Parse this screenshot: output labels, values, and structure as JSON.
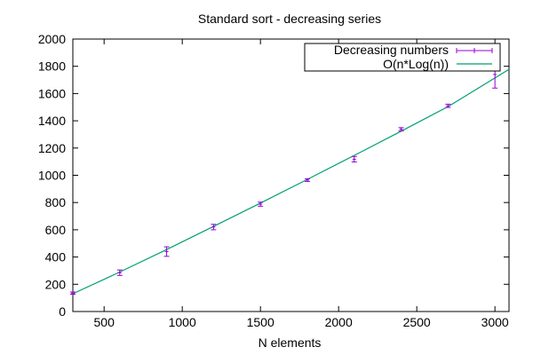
{
  "chart_data": {
    "type": "line",
    "title": "Standard sort - decreasing series",
    "xlabel": "N elements",
    "ylabel": "",
    "xlim": [
      300,
      3090
    ],
    "ylim": [
      0,
      2000
    ],
    "xticks": [
      "500",
      "1000",
      "1500",
      "2000",
      "2500",
      "3000"
    ],
    "yticks": [
      "0",
      "200",
      "400",
      "600",
      "800",
      "1000",
      "1200",
      "1400",
      "1600",
      "1800",
      "2000"
    ],
    "grid": false,
    "legend_position": "top-right",
    "series": [
      {
        "name": "Decreasing numbers",
        "style": "points-with-errorbars",
        "color": "#9400d3",
        "points": [
          {
            "x": 300,
            "y": 135,
            "err": 8
          },
          {
            "x": 600,
            "y": 285,
            "err": 20
          },
          {
            "x": 900,
            "y": 440,
            "err": 35
          },
          {
            "x": 1200,
            "y": 620,
            "err": 20
          },
          {
            "x": 1500,
            "y": 788,
            "err": 15
          },
          {
            "x": 1800,
            "y": 965,
            "err": 10
          },
          {
            "x": 2100,
            "y": 1118,
            "err": 20
          },
          {
            "x": 2400,
            "y": 1338,
            "err": 12
          },
          {
            "x": 2700,
            "y": 1510,
            "err": 12
          },
          {
            "x": 3000,
            "y": 1740,
            "err": 100
          }
        ]
      },
      {
        "name": "O(n*Log(n))",
        "style": "line",
        "color": "#009e73",
        "points": [
          {
            "x": 300,
            "y": 130
          },
          {
            "x": 600,
            "y": 290
          },
          {
            "x": 900,
            "y": 455
          },
          {
            "x": 1200,
            "y": 625
          },
          {
            "x": 1500,
            "y": 796
          },
          {
            "x": 1800,
            "y": 970
          },
          {
            "x": 2100,
            "y": 1146
          },
          {
            "x": 2400,
            "y": 1324
          },
          {
            "x": 2700,
            "y": 1504
          },
          {
            "x": 3090,
            "y": 1778
          }
        ]
      }
    ]
  }
}
